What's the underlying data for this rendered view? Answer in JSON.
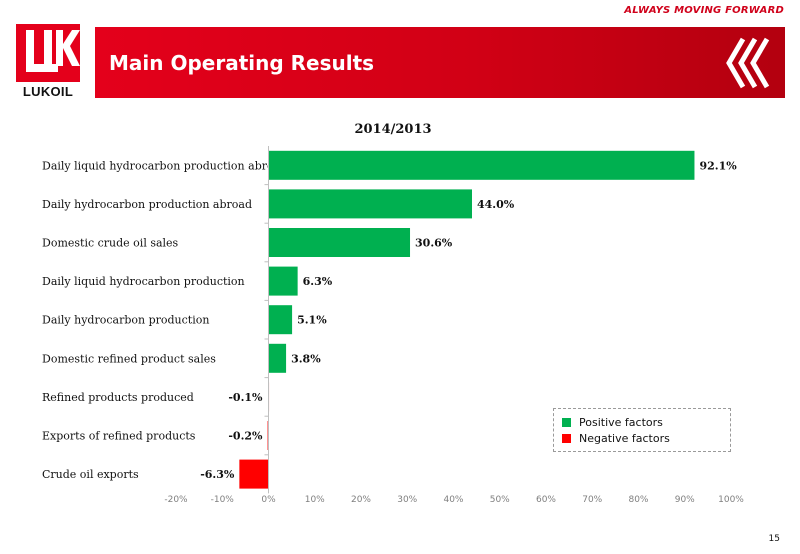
{
  "header": {
    "tagline": "ALWAYS MOVING FORWARD",
    "title": "Main Operating Results",
    "logo_text": "LUKOIL"
  },
  "colors": {
    "brand_red": "#e4001b",
    "positive": "#00b050",
    "negative": "#ff0000"
  },
  "chart_data": {
    "type": "bar",
    "orientation": "horizontal",
    "title": "2014/2013",
    "categories": [
      "Daily liquid hydrocarbon production abroad",
      "Daily hydrocarbon production abroad",
      "Domestic crude oil sales",
      "Daily liquid hydrocarbon production",
      "Daily hydrocarbon production",
      "Domestic refined product sales",
      "Refined products produced",
      "Exports of refined products",
      "Crude oil exports"
    ],
    "values": [
      92.1,
      44.0,
      30.6,
      6.3,
      5.1,
      3.8,
      -0.1,
      -0.2,
      -6.3
    ],
    "value_labels": [
      "92.1%",
      "44.0%",
      "30.6%",
      "6.3%",
      "5.1%",
      "3.8%",
      "-0.1%",
      "-0.2%",
      "-6.3%"
    ],
    "xlim": [
      -20,
      100
    ],
    "xticks": [
      "-20%",
      "-10%",
      "0%",
      "10%",
      "20%",
      "30%",
      "40%",
      "50%",
      "60%",
      "70%",
      "80%",
      "90%",
      "100%"
    ],
    "grid": false,
    "legend": {
      "placement": "bottom-right",
      "entries": [
        "Positive factors",
        "Negative factors"
      ]
    }
  },
  "footer": {
    "page_number": "15"
  }
}
